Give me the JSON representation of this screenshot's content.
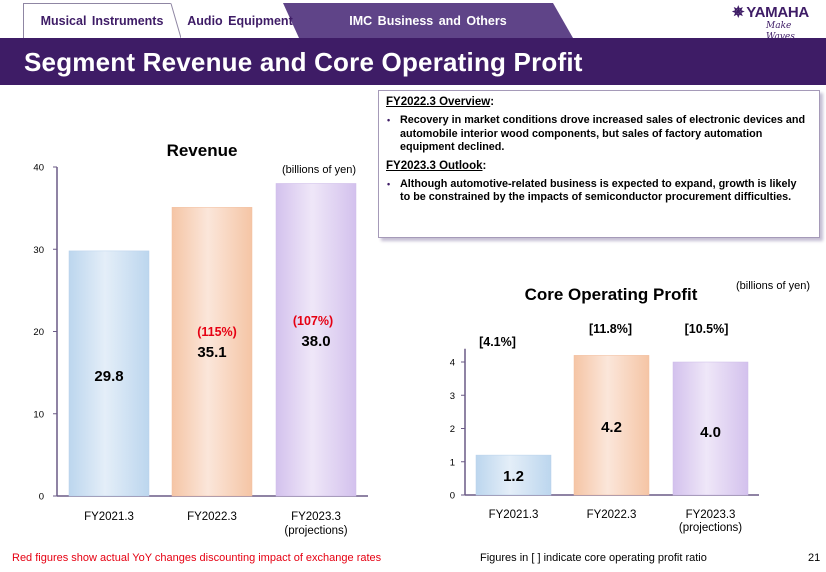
{
  "tabs": [
    {
      "label": "Musical  Instruments",
      "active": false
    },
    {
      "label": "Audio  Equipment",
      "active": false
    },
    {
      "label": "IMC  Business  and  Others",
      "active": true
    }
  ],
  "logo": {
    "brand": "YAMAHA",
    "tagline": "Make Waves",
    "mark": "✵"
  },
  "page_title": "Segment Revenue and Core Operating Profit",
  "colors": {
    "brand_purple": "#3e1c66",
    "tab_active": "#5f4488",
    "yoy_red": "#e60012",
    "bar_blue": "#bdd7ee",
    "bar_orange": "#f6c6a6",
    "bar_purple": "#d5c2ee"
  },
  "overview": {
    "fy2022_heading": "FY2022.3 Overview",
    "fy2022_bullets": [
      "Recovery in market conditions drove increased sales of electronic devices and automobile interior wood components, but sales of factory automation equipment declined."
    ],
    "fy2023_heading": "FY2023.3 Outlook",
    "fy2023_bullets": [
      "Although automotive-related business is expected to expand, growth is likely to be constrained by the impacts of semiconductor procurement difficulties."
    ],
    "colon": ":"
  },
  "chart_data": [
    {
      "type": "bar",
      "title": "Revenue",
      "unit": "(billions of yen)",
      "categories": [
        "FY2021.3",
        "FY2022.3",
        "FY2023.3"
      ],
      "category_sublabels": [
        "",
        "",
        "(projections)"
      ],
      "values": [
        29.8,
        35.1,
        38.0
      ],
      "value_labels": [
        "29.8",
        "35.1",
        "38.0"
      ],
      "yoy_labels": [
        "",
        "(115%)",
        "(107%)"
      ],
      "ylim": [
        0,
        40
      ],
      "yticks": [
        0,
        10,
        20,
        30,
        40
      ],
      "xlabel": "",
      "ylabel": "",
      "grid": false
    },
    {
      "type": "bar",
      "title": "Core Operating Profit",
      "unit": "(billions of yen)",
      "categories": [
        "FY2021.3",
        "FY2022.3",
        "FY2023.3"
      ],
      "category_sublabels": [
        "",
        "",
        "(projections)"
      ],
      "values": [
        1.2,
        4.2,
        4.0
      ],
      "value_labels": [
        "1.2",
        "4.2",
        "4.0"
      ],
      "ratio_labels": [
        "[4.1%]",
        "[11.8%]",
        "[10.5%]"
      ],
      "ylim": [
        0,
        4.4
      ],
      "yticks": [
        0,
        1,
        2,
        3,
        4
      ],
      "xlabel": "",
      "ylabel": "",
      "grid": false
    }
  ],
  "footer": {
    "yoy_note": "Red figures show actual YoY changes discounting impact of exchange rates",
    "ratio_note": "Figures in [ ] indicate core operating profit ratio",
    "page_number": "21"
  }
}
